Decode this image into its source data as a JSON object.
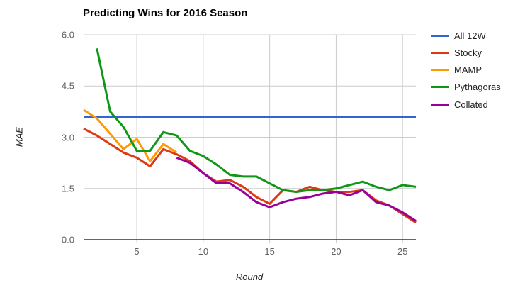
{
  "title": "Predicting Wins for 2016 Season",
  "chart_data": {
    "type": "line",
    "title": "Predicting Wins for 2016 Season",
    "xlabel": "Round",
    "ylabel": "MAE",
    "xlim": [
      1,
      26
    ],
    "ylim": [
      0,
      6
    ],
    "x_ticks": [
      5,
      10,
      15,
      20,
      25
    ],
    "y_ticks": [
      "0.0",
      "1.5",
      "3.0",
      "4.5",
      "6.0"
    ],
    "grid": true,
    "legend_position": "right",
    "gridline_color": "#cccccc",
    "axis_line_color": "#333333",
    "series": [
      {
        "name": "All 12W",
        "color": "#3366cc",
        "x": [
          1,
          2,
          3,
          4,
          5,
          6,
          7,
          8,
          9,
          10,
          11,
          12,
          13,
          14,
          15,
          16,
          17,
          18,
          19,
          20,
          21,
          22,
          23,
          24,
          25,
          26
        ],
        "values": [
          3.6,
          3.6,
          3.6,
          3.6,
          3.6,
          3.6,
          3.6,
          3.6,
          3.6,
          3.6,
          3.6,
          3.6,
          3.6,
          3.6,
          3.6,
          3.6,
          3.6,
          3.6,
          3.6,
          3.6,
          3.6,
          3.6,
          3.6,
          3.6,
          3.6,
          3.6
        ]
      },
      {
        "name": "Stocky",
        "color": "#dc3912",
        "x": [
          1,
          2,
          3,
          4,
          5,
          6,
          7,
          8,
          9,
          10,
          11,
          12,
          13,
          14,
          15,
          16,
          17,
          18,
          19,
          20,
          21,
          22,
          23,
          24,
          25,
          26
        ],
        "values": [
          3.25,
          3.05,
          2.8,
          2.55,
          2.4,
          2.15,
          2.65,
          2.5,
          2.3,
          1.95,
          1.7,
          1.75,
          1.55,
          1.25,
          1.05,
          1.45,
          1.4,
          1.55,
          1.45,
          1.4,
          1.4,
          1.45,
          1.15,
          1.0,
          0.75,
          0.5
        ]
      },
      {
        "name": "MAMP",
        "color": "#ff9900",
        "x": [
          1,
          2,
          3,
          4,
          5,
          6,
          7,
          8
        ],
        "values": [
          3.8,
          3.55,
          3.1,
          2.65,
          2.95,
          2.3,
          2.8,
          2.55
        ]
      },
      {
        "name": "Pythagoras",
        "color": "#109618",
        "x": [
          2,
          3,
          4,
          5,
          6,
          7,
          8,
          9,
          10,
          11,
          12,
          13,
          14,
          15,
          16,
          17,
          18,
          19,
          20,
          21,
          22,
          23,
          24,
          25,
          26
        ],
        "values": [
          5.6,
          3.75,
          3.3,
          2.6,
          2.6,
          3.15,
          3.05,
          2.6,
          2.45,
          2.2,
          1.9,
          1.85,
          1.85,
          1.65,
          1.45,
          1.4,
          1.45,
          1.45,
          1.5,
          1.6,
          1.7,
          1.55,
          1.45,
          1.6,
          1.55
        ]
      },
      {
        "name": "Collated",
        "color": "#990099",
        "x": [
          8,
          9,
          10,
          11,
          12,
          13,
          14,
          15,
          16,
          17,
          18,
          19,
          20,
          21,
          22,
          23,
          24,
          25,
          26
        ],
        "values": [
          2.4,
          2.25,
          1.95,
          1.65,
          1.65,
          1.4,
          1.1,
          0.95,
          1.1,
          1.2,
          1.25,
          1.35,
          1.4,
          1.3,
          1.45,
          1.1,
          1.0,
          0.8,
          0.55
        ]
      }
    ]
  }
}
